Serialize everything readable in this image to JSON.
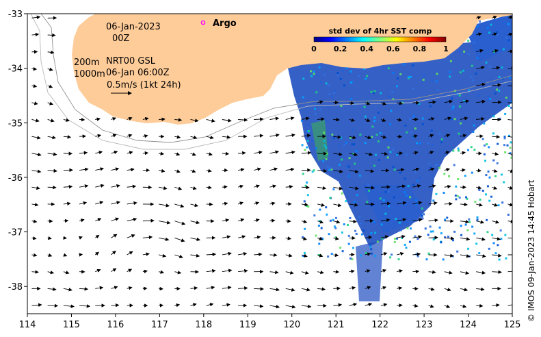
{
  "figure": {
    "date_line1": "06-Jan-2023",
    "date_line2": "00Z",
    "depth_200": "200m",
    "depth_1000": "1000m",
    "product_line1": "NRT00 GSL",
    "product_line2": "06-Jan 06:00Z",
    "scale_label": "0.5m/s (1kt 24h)",
    "argo_label": "Argo",
    "credit": "© IMOS 09-Jan-2023 14:45 Hobart"
  },
  "colorbar": {
    "title": "std dev of 4hr SST comp",
    "ticks": [
      "0",
      "0.2",
      "0.4",
      "0.6",
      "0.8",
      "1"
    ],
    "colors": [
      "#00007f",
      "#0000ff",
      "#0080ff",
      "#00ffff",
      "#80ff80",
      "#ffff00",
      "#ff8000",
      "#ff0000",
      "#7f0000"
    ]
  },
  "axes": {
    "x_ticks": [
      "114",
      "115",
      "116",
      "117",
      "118",
      "119",
      "120",
      "121",
      "122",
      "123",
      "124",
      "125"
    ],
    "y_ticks": [
      "-33",
      "-34",
      "-35",
      "-36",
      "-37",
      "-38"
    ],
    "lon_range": [
      114,
      125
    ],
    "lat_range": [
      -38.5,
      -33
    ]
  },
  "colors": {
    "land": "#fecc99",
    "sst_base": "#1f4fc0",
    "argo": "#ff00ff"
  }
}
